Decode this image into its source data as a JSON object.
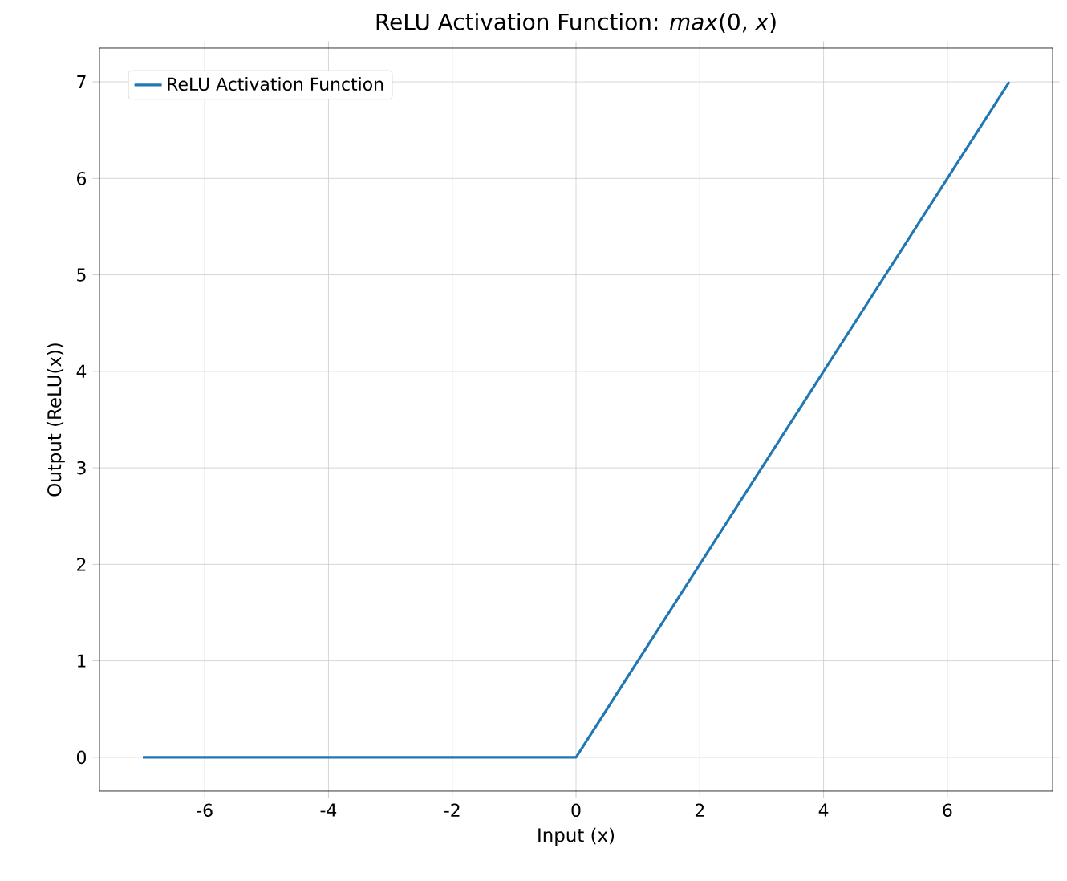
{
  "chart_data": {
    "type": "line",
    "title": "ReLU Activation Function: *max*(0, *x*)",
    "xlabel": "Input (x)",
    "ylabel": "Output (ReLU(x))",
    "x": [
      -7,
      0,
      7
    ],
    "series": [
      {
        "name": "ReLU Activation Function",
        "color": "#1f77b4",
        "values": [
          0,
          0,
          7
        ]
      }
    ],
    "xlim": [
      -7.7,
      7.7
    ],
    "ylim": [
      -0.35,
      7.35
    ],
    "xticks": [
      -6,
      -4,
      -2,
      0,
      2,
      4,
      6
    ],
    "yticks": [
      0,
      1,
      2,
      3,
      4,
      5,
      6,
      7
    ],
    "grid": true,
    "legend": "top left"
  }
}
